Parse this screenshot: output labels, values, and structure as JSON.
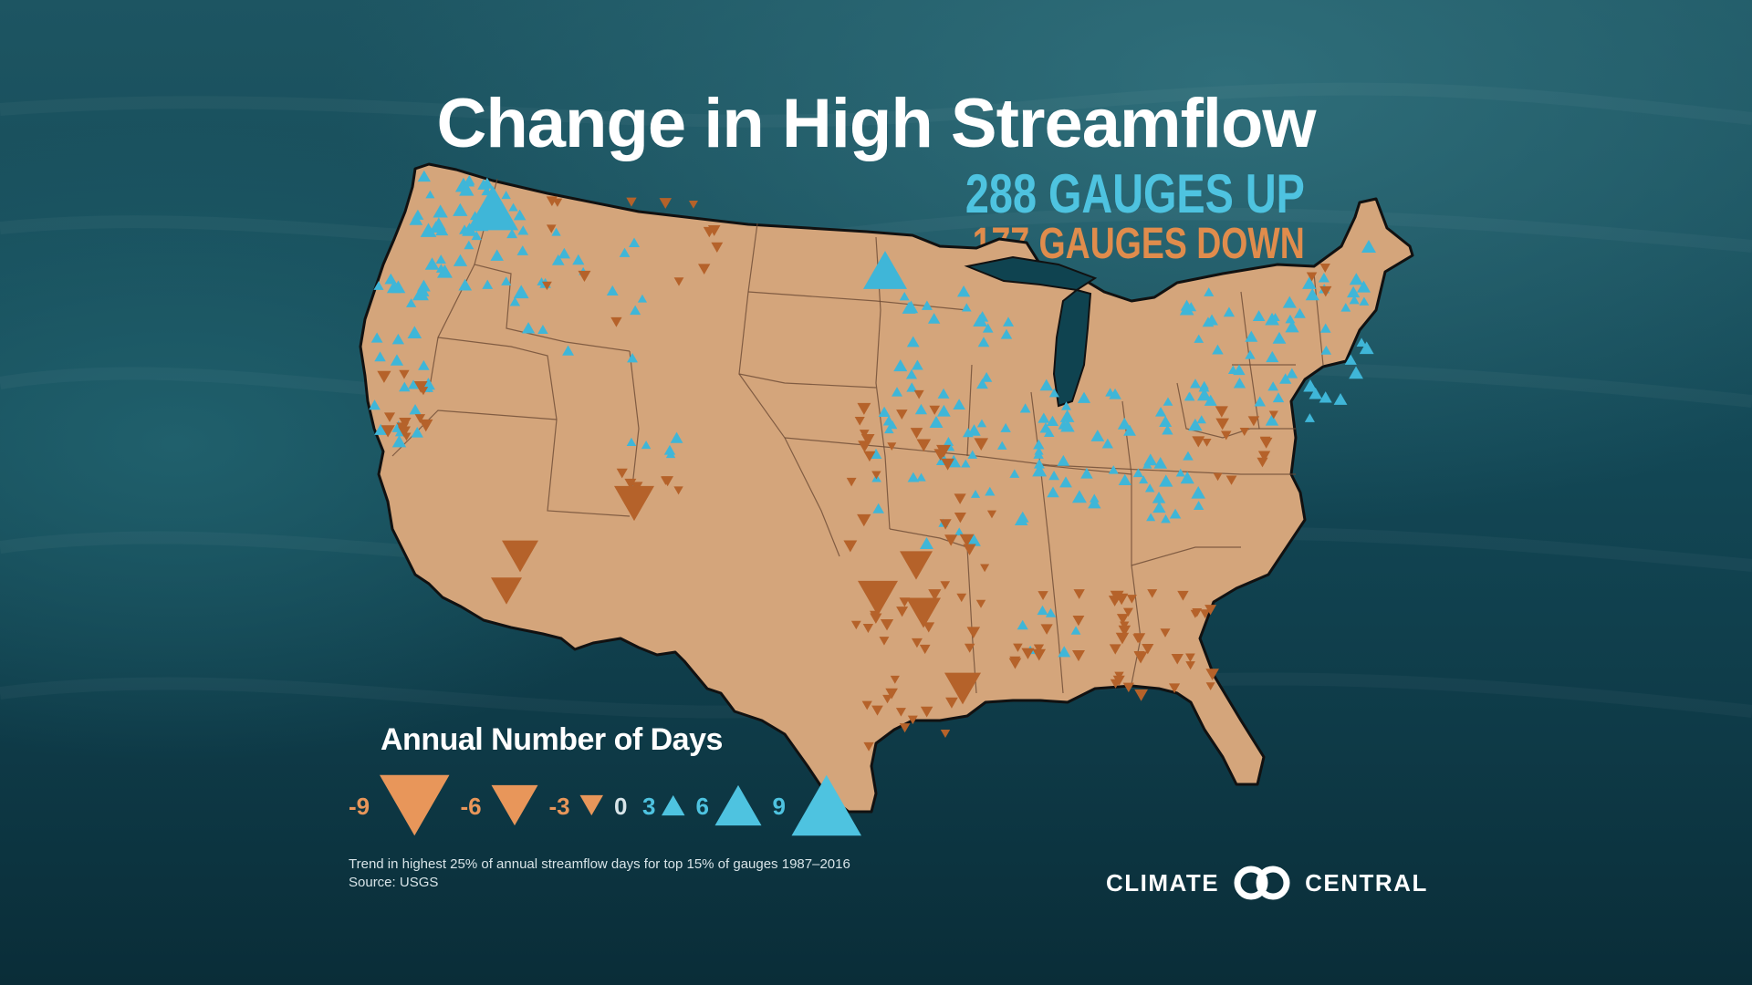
{
  "title": "Change in High Streamflow",
  "gauges_up": "288 GAUGES UP",
  "gauges_down": "177 GAUGES DOWN",
  "legend": {
    "title": "Annual Number of Days",
    "items": [
      {
        "label": "-9",
        "value": -9
      },
      {
        "label": "-6",
        "value": -6
      },
      {
        "label": "-3",
        "value": -3
      },
      {
        "label": "0",
        "value": 0
      },
      {
        "label": "3",
        "value": 3
      },
      {
        "label": "6",
        "value": 6
      },
      {
        "label": "9",
        "value": 9
      }
    ]
  },
  "footnote": {
    "line1": "Trend in highest 25% of annual streamflow days for top 15% of gauges 1987–2016",
    "line2": "Source: USGS"
  },
  "brand": {
    "left": "CLIMATE",
    "right": "CENTRAL"
  },
  "colors": {
    "up": "#3fb6d8",
    "down": "#b5622a",
    "legend_down": "#e8965a",
    "legend_up": "#4ec3e0",
    "land": "#d4a57b",
    "border": "#111111"
  }
}
